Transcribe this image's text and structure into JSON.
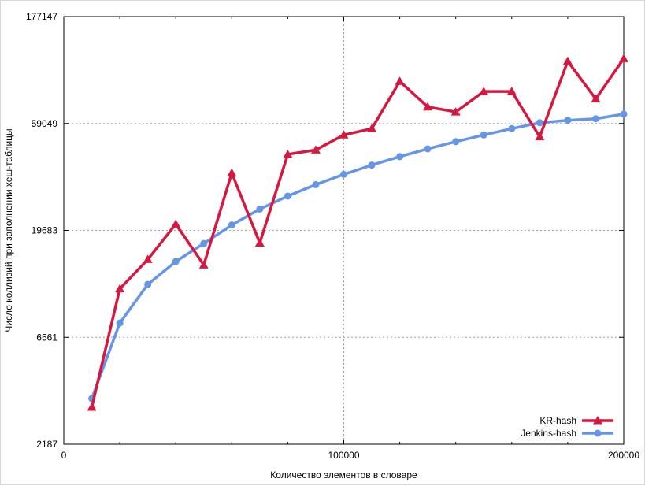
{
  "chart_data": {
    "type": "line",
    "title": "",
    "xlabel": "Количество элементов в словаре",
    "ylabel": "Число коллизий при заполнении хеш-таблицы",
    "xlim": [
      0,
      200000
    ],
    "ylim": [
      2187,
      177147
    ],
    "yscale": "log",
    "grid": true,
    "legend_position": "bottom-right",
    "x_ticks": [
      0,
      100000,
      200000
    ],
    "x_tick_labels": [
      "0",
      "100000",
      "200000"
    ],
    "y_ticks": [
      2187,
      6561,
      19683,
      59049,
      177147
    ],
    "y_tick_labels": [
      "2187",
      "6561",
      "19683",
      "59049",
      "177147"
    ],
    "x": [
      10000,
      20000,
      30000,
      40000,
      50000,
      60000,
      70000,
      80000,
      90000,
      100000,
      110000,
      120000,
      130000,
      140000,
      150000,
      160000,
      170000,
      180000,
      190000,
      200000
    ],
    "series": [
      {
        "name": "KR-hash",
        "color": "#d6173f",
        "marker": "triangle",
        "values": [
          3200,
          10800,
          14600,
          21000,
          13800,
          35500,
          17300,
          43000,
          45000,
          52500,
          56000,
          91000,
          70000,
          66500,
          82000,
          82000,
          51500,
          112000,
          76000,
          115000
        ]
      },
      {
        "name": "Jenkins-hash",
        "color": "#6495e6",
        "marker": "circle",
        "values": [
          3500,
          7600,
          11300,
          14300,
          17200,
          20800,
          24500,
          28000,
          31500,
          35000,
          38500,
          42000,
          45500,
          49000,
          52500,
          56000,
          59500,
          61000,
          62000,
          65000
        ]
      }
    ]
  }
}
